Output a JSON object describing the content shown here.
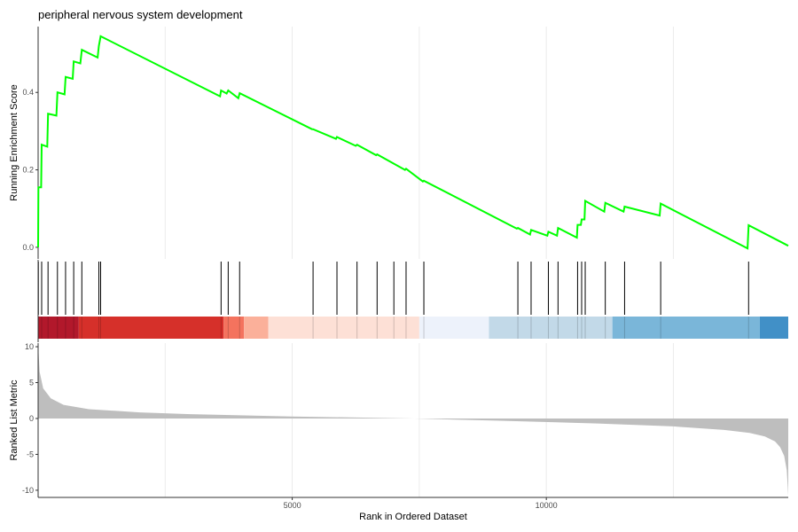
{
  "chart_data": {
    "type": "line",
    "title": "peripheral nervous system development",
    "xlabel": "Rank in Ordered Dataset",
    "xlim": [
      0,
      14760
    ],
    "x_ticks": [
      5000,
      10000
    ],
    "grid": true,
    "panels": {
      "enrichment": {
        "ylabel": "Running Enrichment Score",
        "ylim": [
          -0.03,
          0.57
        ],
        "y_ticks": [
          0.0,
          0.2,
          0.4
        ],
        "line_color": "#00ff00",
        "series": [
          {
            "x": [
              0,
              5,
              60,
              70,
              180,
              195,
              360,
              380,
              520,
              540,
              680,
              700,
              830,
              860,
              1170,
              1195,
              1230,
              3580,
              3600,
              3710,
              3740,
              3940,
              3965,
              5390,
              5410,
              5860,
              5880,
              6250,
              6275,
              6650,
              6670,
              7220,
              7240,
              7570,
              7590,
              9420,
              9440,
              9680,
              9700,
              10020,
              10040,
              10210,
              10230,
              10600,
              10615,
              10680,
              10695,
              10750,
              10765,
              11140,
              11160,
              11520,
              11540,
              12230,
              12250,
              13960,
              13980,
              14760
            ],
            "y": [
              0.0,
              0.155,
              0.155,
              0.265,
              0.26,
              0.345,
              0.34,
              0.4,
              0.395,
              0.44,
              0.435,
              0.48,
              0.475,
              0.51,
              0.49,
              0.52,
              0.545,
              0.39,
              0.405,
              0.397,
              0.405,
              0.385,
              0.398,
              0.305,
              0.305,
              0.28,
              0.285,
              0.262,
              0.265,
              0.238,
              0.24,
              0.2,
              0.203,
              0.17,
              0.172,
              0.048,
              0.05,
              0.033,
              0.045,
              0.03,
              0.04,
              0.03,
              0.05,
              0.025,
              0.058,
              0.058,
              0.072,
              0.072,
              0.12,
              0.092,
              0.115,
              0.092,
              0.105,
              0.082,
              0.113,
              -0.003,
              0.057,
              0.004
            ]
          }
        ]
      },
      "hits": {
        "x": [
          5,
          70,
          195,
          380,
          540,
          700,
          860,
          1195,
          1230,
          3600,
          3740,
          3965,
          5410,
          5880,
          6275,
          6670,
          7000,
          7240,
          7590,
          9440,
          9700,
          10040,
          10230,
          10615,
          10695,
          10765,
          11160,
          11540,
          12250,
          13980
        ],
        "color_bands": [
          {
            "from": 0,
            "to": 800,
            "color": "#b2182b"
          },
          {
            "from": 800,
            "to": 3650,
            "color": "#d6302a"
          },
          {
            "from": 3650,
            "to": 4050,
            "color": "#f4735e"
          },
          {
            "from": 4050,
            "to": 4530,
            "color": "#fbb09a"
          },
          {
            "from": 4530,
            "to": 7500,
            "color": "#fde0d6"
          },
          {
            "from": 7500,
            "to": 8870,
            "color": "#edf2fb"
          },
          {
            "from": 8870,
            "to": 11300,
            "color": "#c2d9e8"
          },
          {
            "from": 11300,
            "to": 14200,
            "color": "#7ab6d9"
          },
          {
            "from": 14200,
            "to": 14760,
            "color": "#4190c7"
          }
        ]
      },
      "ranked_metric": {
        "ylabel": "Ranked List Metric",
        "ylim": [
          -11,
          10.5
        ],
        "y_ticks": [
          10,
          5,
          0,
          -5,
          -10
        ],
        "fill_color": "#bebebe",
        "x": [
          0,
          30,
          100,
          250,
          500,
          1000,
          2000,
          3000,
          5000,
          7400,
          9000,
          11000,
          12500,
          13500,
          14000,
          14300,
          14500,
          14600,
          14680,
          14730,
          14760
        ],
        "values": [
          10.3,
          6.5,
          4.2,
          2.8,
          1.9,
          1.3,
          0.85,
          0.6,
          0.28,
          0.0,
          -0.3,
          -0.7,
          -1.1,
          -1.6,
          -2.0,
          -2.5,
          -3.2,
          -4.0,
          -5.2,
          -7.2,
          -10.7
        ]
      }
    }
  }
}
